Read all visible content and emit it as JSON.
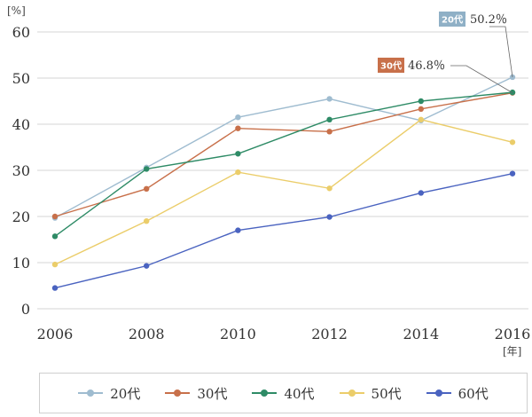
{
  "chart_data": {
    "type": "line",
    "x": [
      2006,
      2008,
      2010,
      2012,
      2014,
      2016
    ],
    "ylim": [
      0,
      60
    ],
    "yticks": [
      0,
      10,
      20,
      30,
      40,
      50,
      60
    ],
    "y_unit": "[%]",
    "x_unit": "[年]",
    "grid": true,
    "legend_position": "bottom",
    "series": [
      {
        "name": "20代",
        "color": "#9fbcd0",
        "values": [
          19.7,
          30.6,
          41.5,
          45.5,
          40.8,
          50.2
        ]
      },
      {
        "name": "30代",
        "color": "#c8704a",
        "values": [
          20.0,
          26.0,
          39.1,
          38.4,
          43.3,
          46.8
        ]
      },
      {
        "name": "40代",
        "color": "#2e8b66",
        "values": [
          15.7,
          30.3,
          33.6,
          41.0,
          45.0,
          46.9
        ]
      },
      {
        "name": "50代",
        "color": "#ebcd6a",
        "values": [
          9.6,
          19.0,
          29.6,
          26.1,
          41.0,
          36.1
        ]
      },
      {
        "name": "60代",
        "color": "#4a63c0",
        "values": [
          4.5,
          9.3,
          17.0,
          19.9,
          25.1,
          29.3
        ]
      }
    ],
    "annotations": [
      {
        "series": "20代",
        "label": "20代",
        "value_text": "50.2％",
        "color": "#8fb0c6"
      },
      {
        "series": "30代",
        "label": "30代",
        "value_text": "46.8％",
        "color": "#c8704a"
      }
    ]
  }
}
